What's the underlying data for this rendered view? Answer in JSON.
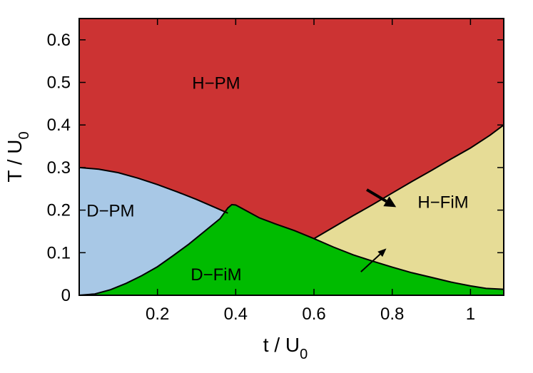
{
  "chart_data": {
    "type": "area",
    "xlabel": "t / U",
    "xlabel_sub": "0",
    "ylabel": "T / U",
    "ylabel_sub": "0",
    "xlim": [
      0.0,
      1.085
    ],
    "ylim": [
      0.0,
      0.65
    ],
    "xticks": [
      0.2,
      0.4,
      0.6,
      0.8,
      1
    ],
    "xtick_labels": [
      "0.2",
      "0.4",
      "0.6",
      "0.8",
      "1"
    ],
    "yticks": [
      0,
      0.1,
      0.2,
      0.3,
      0.4,
      0.5,
      0.6
    ],
    "ytick_labels": [
      "0",
      "0.1",
      "0.2",
      "0.3",
      "0.4",
      "0.5",
      "0.6"
    ],
    "regions": [
      {
        "label": "H−PM",
        "color": "#cc3333",
        "label_pos": [
          0.35,
          0.5
        ]
      },
      {
        "label": "D−PM",
        "color": "#a8c8e6",
        "label_pos": [
          0.08,
          0.2
        ]
      },
      {
        "label": "D−FiM",
        "color": "#00bb00",
        "label_pos": [
          0.35,
          0.05
        ]
      },
      {
        "label": "H−FiM",
        "color": "#e6dc96",
        "label_pos": [
          0.93,
          0.22
        ]
      }
    ],
    "boundaries": {
      "d_pm_upper": [
        [
          0.0,
          0.3
        ],
        [
          0.05,
          0.296
        ],
        [
          0.1,
          0.288
        ],
        [
          0.15,
          0.275
        ],
        [
          0.2,
          0.26
        ],
        [
          0.25,
          0.243
        ],
        [
          0.3,
          0.225
        ],
        [
          0.35,
          0.205
        ],
        [
          0.38,
          0.193
        ]
      ],
      "d_fim_upper": [
        [
          0.0,
          0.0
        ],
        [
          0.04,
          0.003
        ],
        [
          0.08,
          0.013
        ],
        [
          0.12,
          0.028
        ],
        [
          0.16,
          0.046
        ],
        [
          0.2,
          0.067
        ],
        [
          0.24,
          0.093
        ],
        [
          0.28,
          0.12
        ],
        [
          0.32,
          0.15
        ],
        [
          0.36,
          0.18
        ],
        [
          0.38,
          0.205
        ],
        [
          0.39,
          0.213
        ],
        [
          0.4,
          0.212
        ],
        [
          0.42,
          0.202
        ],
        [
          0.46,
          0.182
        ],
        [
          0.5,
          0.168
        ],
        [
          0.55,
          0.152
        ],
        [
          0.6,
          0.133
        ],
        [
          0.65,
          0.113
        ],
        [
          0.7,
          0.095
        ],
        [
          0.75,
          0.08
        ],
        [
          0.8,
          0.066
        ],
        [
          0.85,
          0.053
        ],
        [
          0.9,
          0.042
        ],
        [
          0.95,
          0.031
        ],
        [
          1.0,
          0.022
        ],
        [
          1.04,
          0.016
        ],
        [
          1.085,
          0.014
        ]
      ],
      "h_fim_upper": [
        [
          0.6,
          0.133
        ],
        [
          0.65,
          0.16
        ],
        [
          0.7,
          0.187
        ],
        [
          0.75,
          0.213
        ],
        [
          0.8,
          0.24
        ],
        [
          0.85,
          0.267
        ],
        [
          0.9,
          0.293
        ],
        [
          0.95,
          0.32
        ],
        [
          1.0,
          0.346
        ],
        [
          1.05,
          0.376
        ],
        [
          1.085,
          0.4
        ]
      ]
    },
    "arrows": [
      {
        "from": [
          0.735,
          0.248
        ],
        "to": [
          0.81,
          0.207
        ],
        "weight": "thick"
      },
      {
        "from": [
          0.72,
          0.055
        ],
        "to": [
          0.785,
          0.11
        ],
        "weight": "thin"
      }
    ]
  }
}
